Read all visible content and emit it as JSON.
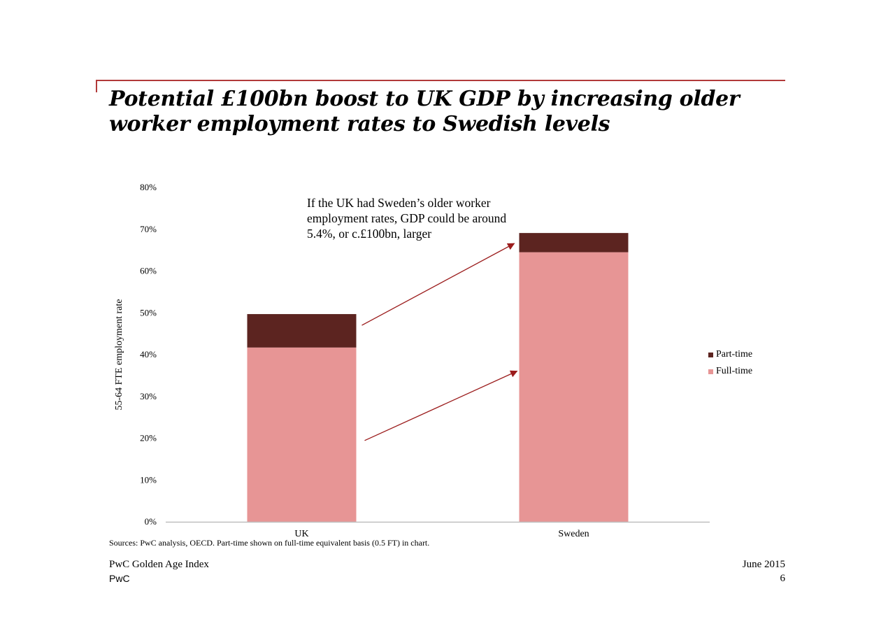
{
  "slide": {
    "title_line1": "Potential £100bn boost to UK GDP by increasing older",
    "title_line2": "worker employment rates to Swedish levels",
    "annotation_line1": "If the UK had Sweden’s older worker",
    "annotation_line2": "employment rates, GDP could be around",
    "annotation_line3": "5.4%, or c.£100bn, larger",
    "sources": "Sources: PwC analysis, OECD. Part-time shown on full-time equivalent basis (0.5 FT) in chart.",
    "footer_left_1": "PwC Golden Age Index",
    "footer_left_2": "PwC",
    "footer_right_1": "June 2015",
    "footer_right_2": "6"
  },
  "colors": {
    "accent_rule": "#b23a3a",
    "full_time": "#e79595",
    "part_time": "#5c2420",
    "arrow": "#9b1c1c",
    "axis": "#bfbfbf"
  },
  "chart_data": {
    "type": "bar",
    "stacked": true,
    "categories": [
      "UK",
      "Sweden"
    ],
    "series": [
      {
        "name": "Full-time",
        "values": [
          41.7,
          64.5
        ]
      },
      {
        "name": "Part-time",
        "values": [
          8.0,
          4.6
        ]
      }
    ],
    "ylabel": "55-64 FTE employment rate",
    "ylim": [
      0,
      80
    ],
    "yticks": [
      0,
      10,
      20,
      30,
      40,
      50,
      60,
      70,
      80
    ],
    "ytick_labels": [
      "0%",
      "10%",
      "20%",
      "30%",
      "40%",
      "50%",
      "60%",
      "70%",
      "80%"
    ],
    "legend": {
      "position": "right",
      "entries": [
        "Part-time",
        "Full-time"
      ]
    },
    "grid": false
  }
}
